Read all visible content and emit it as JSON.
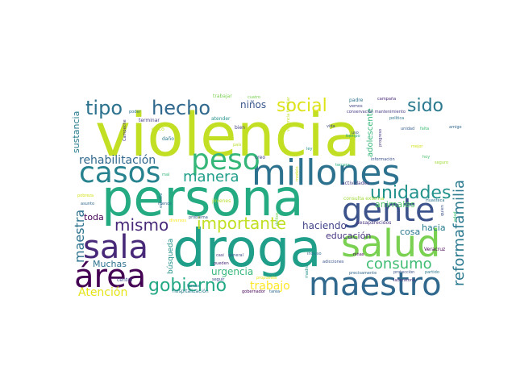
{
  "words": [
    {
      "text": "violencia",
      "color": "#c2df23"
    },
    {
      "text": "persona",
      "color": "#25ab82"
    },
    {
      "text": "droga",
      "color": "#1f9e89"
    },
    {
      "text": "millones",
      "color": "#2c728e"
    },
    {
      "text": "salud",
      "color": "#7ad151"
    },
    {
      "text": "maestro",
      "color": "#31688e"
    },
    {
      "text": "gente",
      "color": "#3b528b"
    },
    {
      "text": "casos",
      "color": "#26828e"
    },
    {
      "text": "sala",
      "color": "#482878"
    },
    {
      "text": "área",
      "color": "#440154"
    },
    {
      "text": "peso",
      "color": "#35b779"
    },
    {
      "text": "tipo",
      "color": "#2c728e"
    },
    {
      "text": "hecho",
      "color": "#31688e"
    },
    {
      "text": "social",
      "color": "#dde318"
    },
    {
      "text": "sido",
      "color": "#2a788e"
    },
    {
      "text": "unidades",
      "color": "#21918c"
    },
    {
      "text": "importante",
      "color": "#c2df23"
    },
    {
      "text": "mismo",
      "color": "#482878"
    },
    {
      "text": "manera",
      "color": "#1f9e89"
    },
    {
      "text": "gobierno",
      "color": "#22a884"
    },
    {
      "text": "consumo",
      "color": "#3fbc73"
    },
    {
      "text": "reformafamilia",
      "color": "#2a788e"
    },
    {
      "text": "maestra",
      "color": "#2c728e"
    },
    {
      "text": "rehabilitación",
      "color": "#31688e"
    },
    {
      "text": "trabajo",
      "color": "#fde725"
    },
    {
      "text": "Atención",
      "color": "#e5e419"
    },
    {
      "text": "urgencia",
      "color": "#35b779"
    },
    {
      "text": "niños",
      "color": "#39568c"
    },
    {
      "text": "haciendo",
      "color": "#414487"
    },
    {
      "text": "educación",
      "color": "#46327e"
    },
    {
      "text": "Muchas",
      "color": "#2c728e"
    },
    {
      "text": "toda",
      "color": "#440154"
    },
    {
      "text": "sustancia",
      "color": "#287c8e"
    },
    {
      "text": "adolescente",
      "color": "#35b779"
    },
    {
      "text": "animales",
      "color": "#54c568"
    },
    {
      "text": "hacia",
      "color": "#287c8e"
    },
    {
      "text": "cosa",
      "color": "#2a788e"
    },
    {
      "text": "búsqueda",
      "color": "#21918c"
    },
    {
      "text": "trabajar",
      "color": "#7ad151"
    },
    {
      "text": "padre",
      "color": "#2c728e"
    },
    {
      "text": "centro",
      "color": "#3e4a89"
    },
    {
      "text": "hospitalización",
      "color": "#2a788e"
    },
    {
      "text": "Veracruz",
      "color": "#440154"
    },
    {
      "text": "jóvenes",
      "color": "#b5de2b"
    },
    {
      "text": "consulta externa",
      "color": "#a0da39"
    },
    {
      "text": "actividades",
      "color": "#443983"
    },
    {
      "text": "desaparecidos",
      "color": "#46327e"
    },
    {
      "text": "adicciones",
      "color": "#3b528b"
    },
    {
      "text": "precisamente",
      "color": "#31688e"
    },
    {
      "text": "laboratorio",
      "color": "#46327e"
    },
    {
      "text": "atender",
      "color": "#21918c"
    },
    {
      "text": "bien",
      "color": "#433e85"
    },
    {
      "text": "cinco",
      "color": "#c2df23"
    },
    {
      "text": "conservación mantenimiento",
      "color": "#443983"
    },
    {
      "text": "vemos",
      "color": "#414487"
    },
    {
      "text": "información",
      "color": "#3b528b"
    },
    {
      "text": "política",
      "color": "#2c728e"
    },
    {
      "text": "campaña",
      "color": "#482878"
    },
    {
      "text": "cuatro",
      "color": "#7ad151"
    },
    {
      "text": "unidad",
      "color": "#355f8d"
    },
    {
      "text": "falta",
      "color": "#3fbc73"
    },
    {
      "text": "amigo",
      "color": "#31688e"
    },
    {
      "text": "seguro",
      "color": "#a0da39"
    },
    {
      "text": "Huasteca",
      "color": "#2c728e"
    },
    {
      "text": "ley",
      "color": "#21918c"
    },
    {
      "text": "creo",
      "color": "#414487"
    },
    {
      "text": "pueden",
      "color": "#482878"
    },
    {
      "text": "general",
      "color": "#39568c"
    },
    {
      "text": "casi",
      "color": "#46327e"
    },
    {
      "text": "incluso",
      "color": "#31688e"
    },
    {
      "text": "seguir",
      "color": "#3e4a89"
    },
    {
      "text": "gobernador",
      "color": "#440154"
    },
    {
      "text": "tarea",
      "color": "#31688e"
    },
    {
      "text": "protección",
      "color": "#3b528b"
    },
    {
      "text": "partido",
      "color": "#2a788e"
    },
    {
      "text": "terminar",
      "color": "#433e85"
    },
    {
      "text": "poder",
      "color": "#2c728e"
    },
    {
      "text": "asunto",
      "color": "#31688e"
    },
    {
      "text": "daño",
      "color": "#2a788e"
    },
    {
      "text": "tiempo",
      "color": "#1f9e89"
    },
    {
      "text": "menos",
      "color": "#31688e"
    },
    {
      "text": "problema",
      "color": "#38588c"
    },
    {
      "text": "niñas",
      "color": "#440154"
    },
    {
      "text": "Campeche",
      "color": "#46327e"
    },
    {
      "text": "temas",
      "color": "#2a788e"
    },
    {
      "text": "progreso",
      "color": "#443983"
    },
    {
      "text": "país",
      "color": "#b5de2b"
    },
    {
      "text": "hoy",
      "color": "#4ac16d"
    },
    {
      "text": "uso",
      "color": "#38588c"
    },
    {
      "text": "mal",
      "color": "#35b779"
    },
    {
      "text": "estudio",
      "color": "#2c728e"
    },
    {
      "text": "mejor",
      "color": "#d2e21b"
    },
    {
      "text": "modelo",
      "color": "#d2e21b"
    },
    {
      "text": "tercera",
      "color": "#27ad81"
    },
    {
      "text": "pobreza",
      "color": "#d2e21b"
    },
    {
      "text": "violencia familiar",
      "color": "#c2df23"
    },
    {
      "text": "propuesta",
      "color": "#e5e419"
    },
    {
      "text": "diversos",
      "color": "#fde725"
    },
    {
      "text": "edad",
      "color": "#3fbc73"
    },
    {
      "text": "delitos",
      "color": "#6ece58"
    },
    {
      "text": "madre",
      "color": "#21918c"
    },
    {
      "text": "vida",
      "color": "#3e4a89"
    },
    {
      "text": "quien",
      "color": "#3b528b"
    }
  ]
}
